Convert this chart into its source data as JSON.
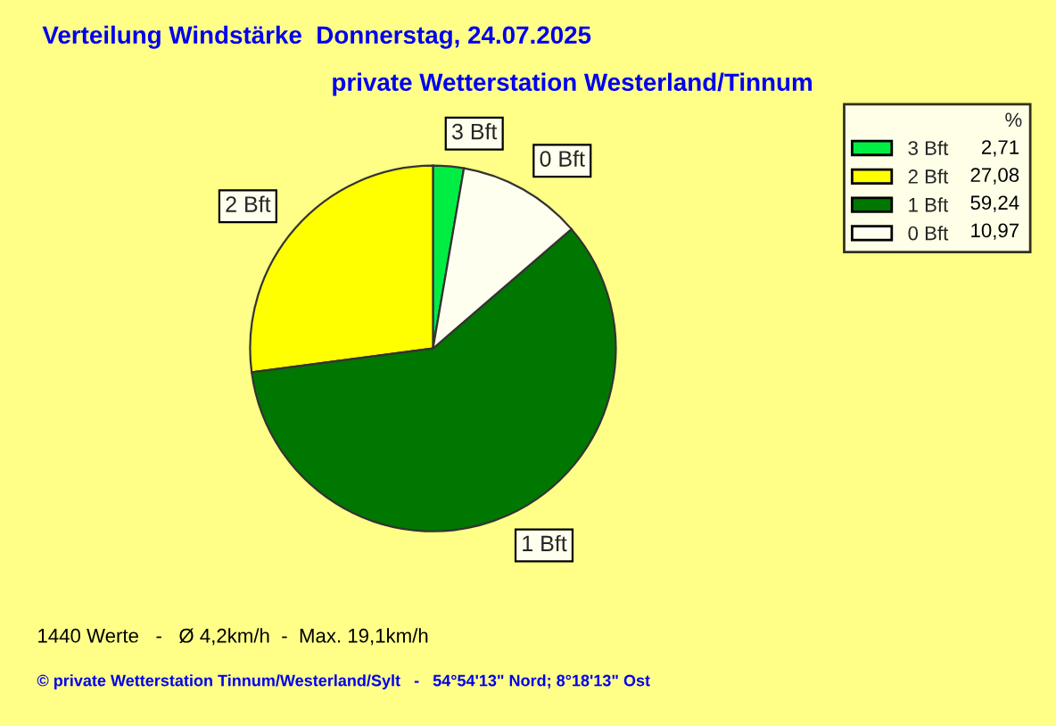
{
  "chart_data": {
    "type": "pie",
    "title": "Verteilung Windstärke  Donnerstag, 24.07.2025",
    "subtitle": "private Wetterstation Westerland/Tinnum",
    "categories": [
      "3 Bft",
      "2 Bft",
      "1 Bft",
      "0 Bft"
    ],
    "values": [
      2.71,
      27.08,
      59.24,
      10.97
    ],
    "colors": [
      "#00ee44",
      "#ffff00",
      "#007700",
      "#fffff0"
    ],
    "value_labels": [
      "2,71",
      "27,08",
      "59,24",
      "10,97"
    ],
    "legend_title": "%",
    "legend": "top right",
    "annotations": [
      "1440 Werte   -   Ø 4,2km/h  -  Max. 19,1km/h",
      "© private Wetterstation Tinnum/Westerland/Sylt   -   54°54'13\" Nord; 8°18'13\" Ost"
    ]
  }
}
